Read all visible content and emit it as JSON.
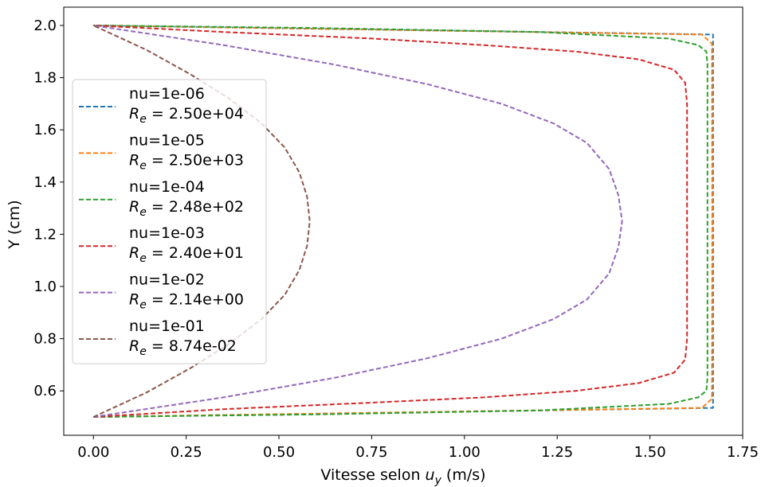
{
  "chart_data": {
    "type": "line",
    "xlabel_prefix": "Vitesse selon ",
    "xlabel_var": "u",
    "xlabel_sub": "y",
    "xlabel_suffix": " (m/s)",
    "ylabel": "Y (cm)",
    "xlim": [
      -0.08,
      1.75
    ],
    "ylim": [
      0.43,
      2.07
    ],
    "xticks": [
      0.0,
      0.25,
      0.5,
      0.75,
      1.0,
      1.25,
      1.5,
      1.75
    ],
    "xtick_labels": [
      "0.00",
      "0.25",
      "0.50",
      "0.75",
      "1.00",
      "1.25",
      "1.50",
      "1.75"
    ],
    "yticks": [
      0.6,
      0.8,
      1.0,
      1.2,
      1.4,
      1.6,
      1.8,
      2.0
    ],
    "ytick_labels": [
      "0.6",
      "0.8",
      "1.0",
      "1.2",
      "1.4",
      "1.6",
      "1.8",
      "2.0"
    ],
    "grid": false,
    "legend_position": "left",
    "line_style": "dashed",
    "series": [
      {
        "name": "nu=1e-06",
        "re_prefix": "R",
        "re_sub": "e",
        "re_value": " = 2.50e+04",
        "color": "#1f77b4",
        "x": [
          0,
          1.67,
          1.67,
          1.67,
          1.67,
          0
        ],
        "y": [
          0.5,
          0.535,
          1.0,
          1.5,
          1.965,
          2.0
        ]
      },
      {
        "name": "nu=1e-05",
        "re_prefix": "R",
        "re_sub": "e",
        "re_value": " = 2.50e+03",
        "color": "#ff7f0e",
        "x": [
          0,
          1.64,
          1.667,
          1.668,
          1.667,
          1.64,
          0
        ],
        "y": [
          0.5,
          0.535,
          0.57,
          1.25,
          1.93,
          1.965,
          2.0
        ]
      },
      {
        "name": "nu=1e-04",
        "re_prefix": "R",
        "re_sub": "e",
        "re_value": " = 2.48e+02",
        "color": "#2ca02c",
        "x": [
          0,
          0.6,
          1.2,
          1.55,
          1.63,
          1.652,
          1.655,
          1.655,
          1.652,
          1.63,
          1.55,
          1.2,
          0.6,
          0
        ],
        "y": [
          0.5,
          0.51,
          0.525,
          0.55,
          0.575,
          0.6,
          0.65,
          1.85,
          1.9,
          1.925,
          1.95,
          1.975,
          1.99,
          2.0
        ]
      },
      {
        "name": "nu=1e-03",
        "re_prefix": "R",
        "re_sub": "e",
        "re_value": " = 2.40e+01",
        "color": "#d62728",
        "x": [
          0,
          0.35,
          0.75,
          1.05,
          1.3,
          1.47,
          1.565,
          1.595,
          1.6,
          1.6,
          1.595,
          1.565,
          1.47,
          1.3,
          1.05,
          0.75,
          0.35,
          0
        ],
        "y": [
          0.5,
          0.53,
          0.555,
          0.575,
          0.6,
          0.63,
          0.67,
          0.72,
          0.8,
          1.7,
          1.78,
          1.83,
          1.87,
          1.9,
          1.925,
          1.95,
          1.975,
          2.0
        ]
      },
      {
        "name": "nu=1e-02",
        "re_prefix": "R",
        "re_sub": "e",
        "re_value": " = 2.14e+00",
        "color": "#9467bd",
        "x": [
          0,
          0.35,
          0.65,
          0.9,
          1.1,
          1.24,
          1.33,
          1.39,
          1.415,
          1.425,
          1.415,
          1.39,
          1.33,
          1.24,
          1.1,
          0.9,
          0.65,
          0.35,
          0
        ],
        "y": [
          0.5,
          0.575,
          0.65,
          0.725,
          0.8,
          0.875,
          0.95,
          1.05,
          1.15,
          1.25,
          1.35,
          1.45,
          1.55,
          1.625,
          1.7,
          1.775,
          1.85,
          1.925,
          2.0
        ]
      },
      {
        "name": "nu=1e-01",
        "re_prefix": "R",
        "re_sub": "e",
        "re_value": " = 8.74e-02",
        "color": "#8c564b",
        "x": [
          0,
          0.143,
          0.262,
          0.367,
          0.453,
          0.516,
          0.555,
          0.576,
          0.583,
          0.576,
          0.555,
          0.516,
          0.453,
          0.367,
          0.262,
          0.143,
          0
        ],
        "y": [
          0.5,
          0.59375,
          0.6875,
          0.78125,
          0.875,
          0.96875,
          1.0625,
          1.15625,
          1.25,
          1.34375,
          1.4375,
          1.53125,
          1.625,
          1.71875,
          1.8125,
          1.90625,
          2.0
        ]
      }
    ]
  }
}
